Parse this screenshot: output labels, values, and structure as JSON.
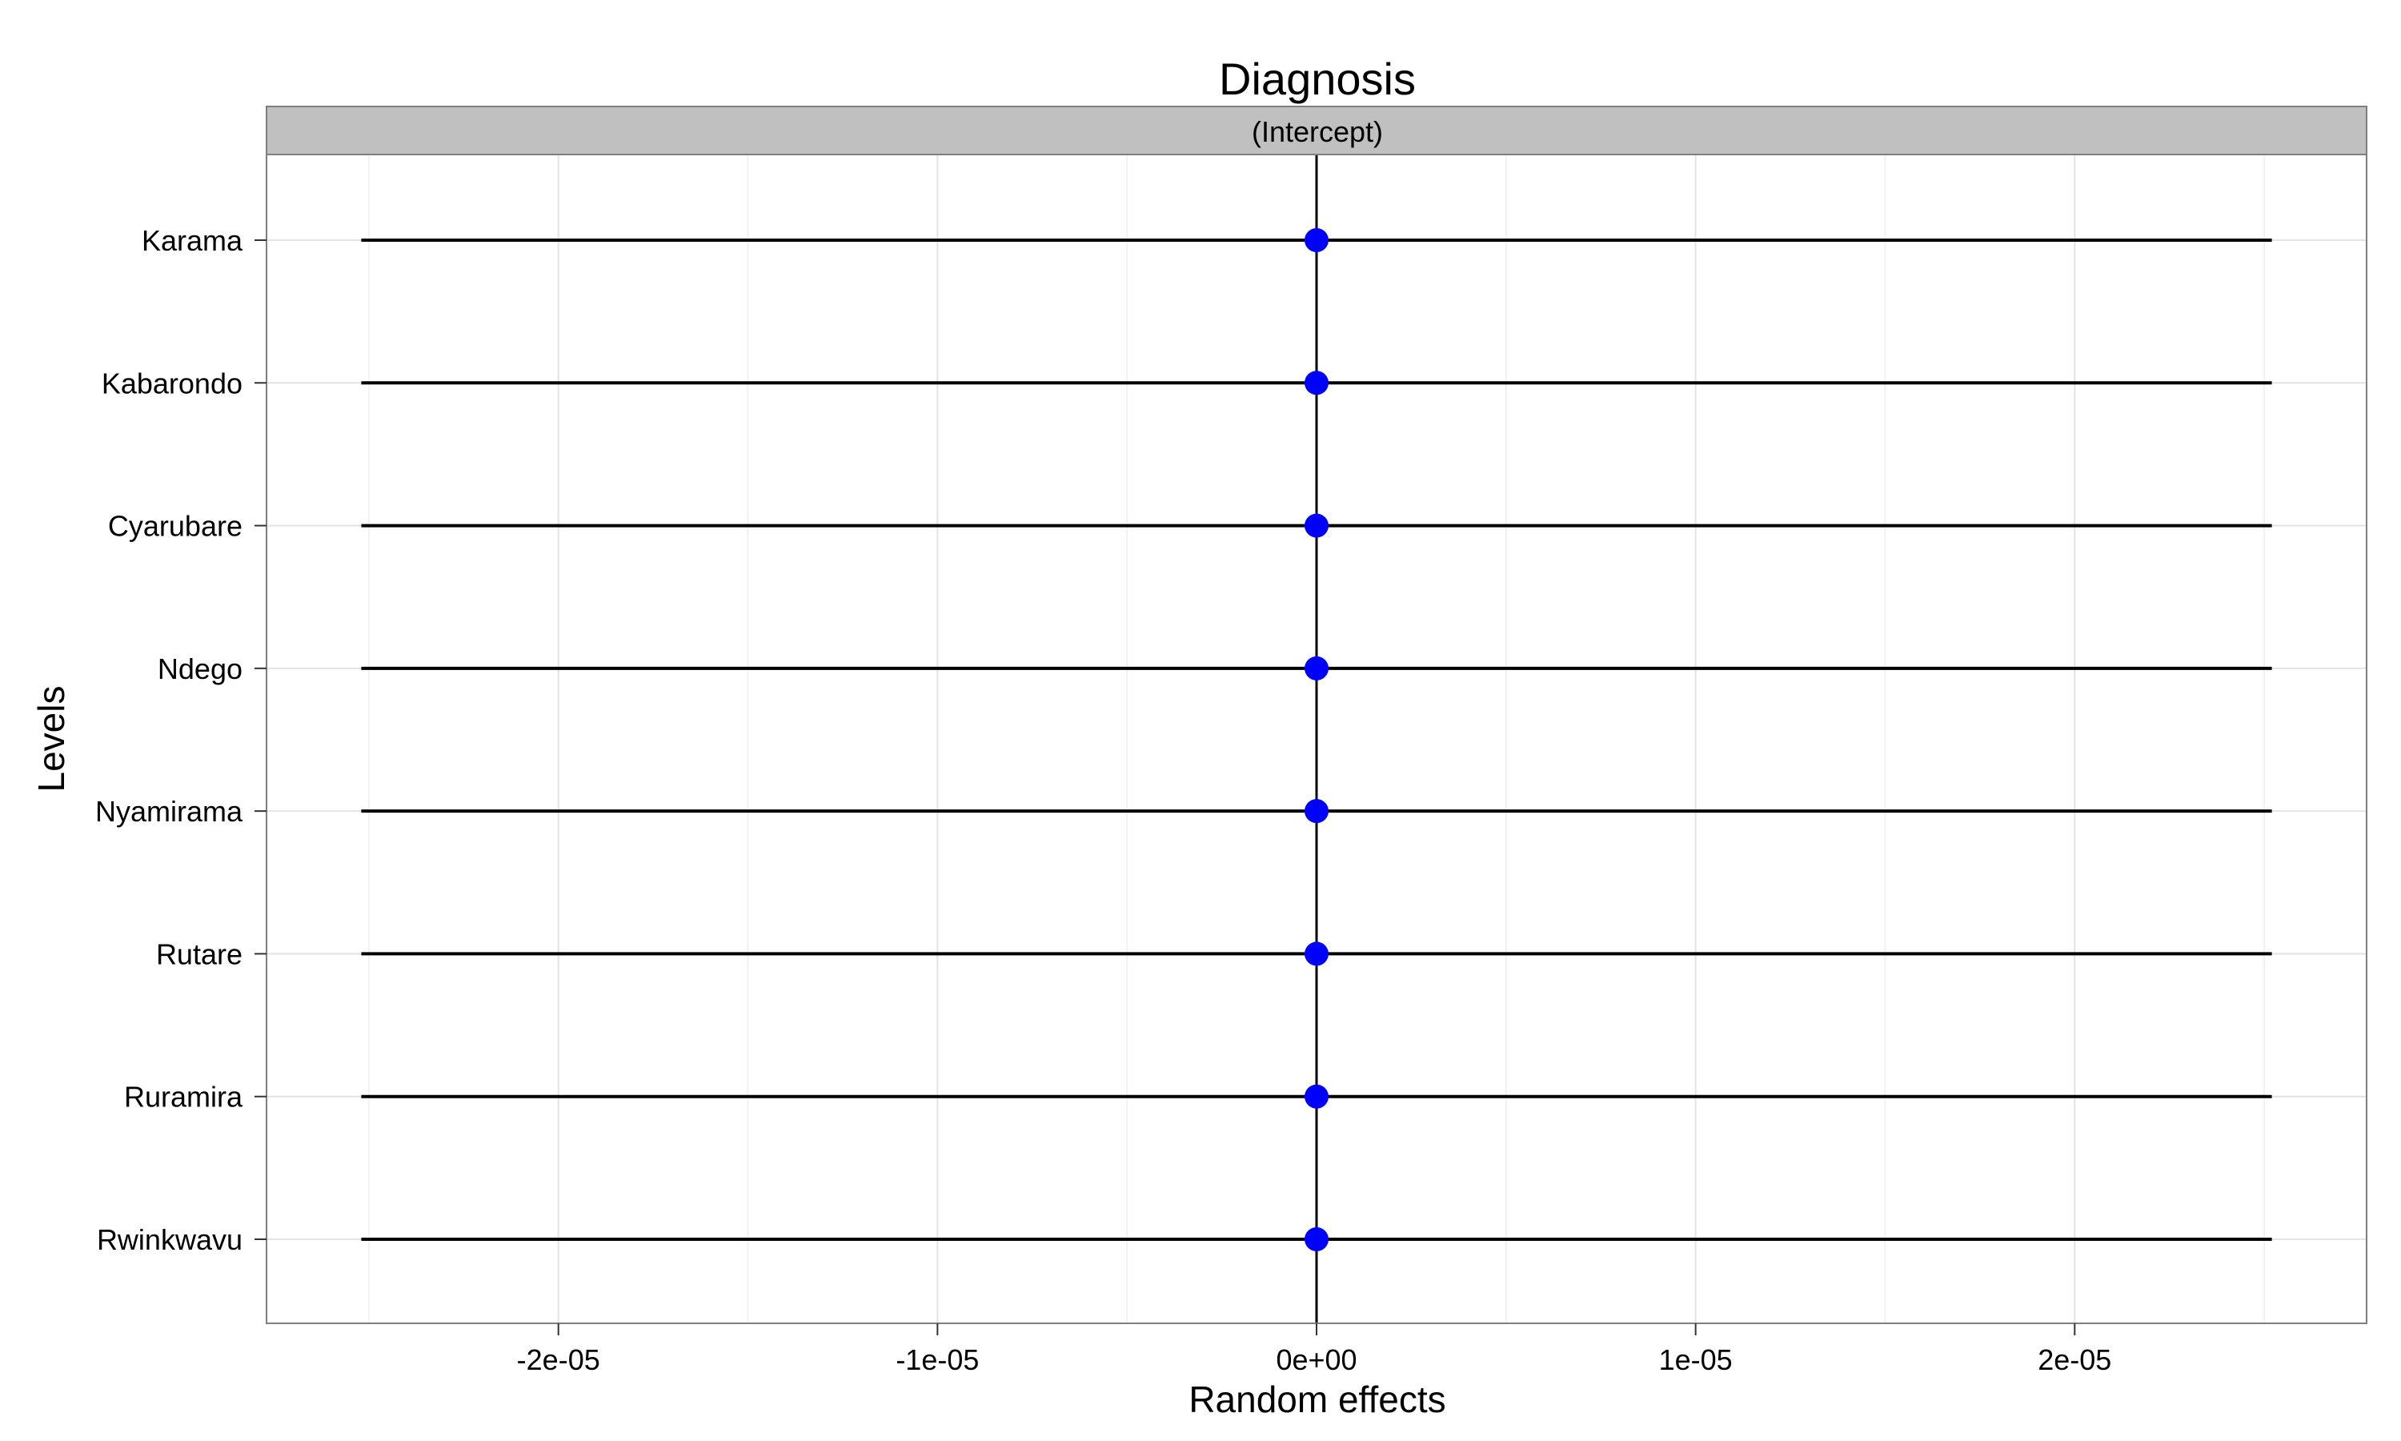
{
  "chart_data": {
    "type": "dot-interval",
    "title": "Diagnosis",
    "facet": "(Intercept)",
    "xlabel": "Random effects",
    "ylabel": "Levels",
    "xlim": [
      -2.77e-05,
      2.77e-05
    ],
    "x_ticks": [
      -2e-05,
      -1e-05,
      0,
      1e-05,
      2e-05
    ],
    "x_tick_labels": [
      "-2e-05",
      "-1e-05",
      "0e+00",
      "1e-05",
      "2e-05"
    ],
    "reference_line": 0,
    "grid": true,
    "legend": "none",
    "colors": {
      "point": "#0000ff",
      "interval": "#000000",
      "strip": "#c0c0c0"
    },
    "levels": [
      "Karama",
      "Kabarondo",
      "Cyarubare",
      "Ndego",
      "Nyamirama",
      "Rutare",
      "Ruramira",
      "Rwinkwavu"
    ],
    "estimates": [
      0,
      0,
      0,
      0,
      0,
      0,
      0,
      0
    ],
    "lower": [
      -2.52e-05,
      -2.52e-05,
      -2.52e-05,
      -2.52e-05,
      -2.52e-05,
      -2.52e-05,
      -2.52e-05,
      -2.52e-05
    ],
    "upper": [
      2.52e-05,
      2.52e-05,
      2.52e-05,
      2.52e-05,
      2.52e-05,
      2.52e-05,
      2.52e-05,
      2.52e-05
    ]
  }
}
